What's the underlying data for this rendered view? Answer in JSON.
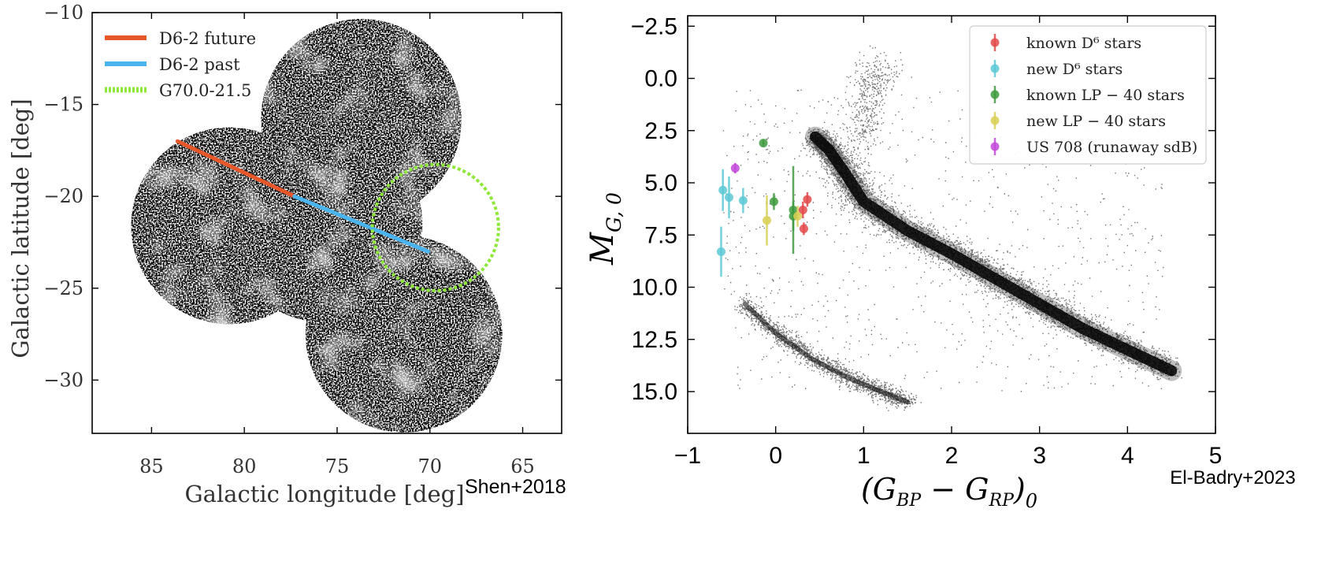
{
  "colors": {
    "future": "#e8572a",
    "past": "#49b4ee",
    "circle": "#8ee83a",
    "known_d6": "#e34a4a",
    "new_d6": "#5cc9d6",
    "known_lp": "#3e9a3e",
    "new_lp": "#d9cf55",
    "us708": "#c248d8"
  },
  "chart_data": [
    {
      "type": "scatter",
      "title": "",
      "xlabel": "Galactic longitude [deg]",
      "ylabel": "Galactic latitude [deg]",
      "xlim": [
        88.2,
        62.9
      ],
      "ylim": [
        -32.9,
        -10
      ],
      "xticks": [
        85,
        80,
        75,
        70,
        65
      ],
      "yticks": [
        -10,
        -15,
        -20,
        -25,
        -30
      ],
      "xtick_labels": [
        "85",
        "80",
        "75",
        "70",
        "65"
      ],
      "ytick_labels": [
        "−10",
        "−15",
        "−20",
        "−25",
        "−30"
      ],
      "credit": "Shen+2018",
      "legend": [
        {
          "label": "D6-2 future",
          "style": "solid",
          "color_key": "future"
        },
        {
          "label": "D6-2 past",
          "style": "solid",
          "color_key": "past"
        },
        {
          "label": "G70.0-21.5",
          "style": "dotted",
          "color_key": "circle"
        }
      ],
      "trajectory_future": [
        [
          83.6,
          -17.0
        ],
        [
          77.3,
          -20.0
        ]
      ],
      "trajectory_past": [
        [
          77.3,
          -20.0
        ],
        [
          70.1,
          -23.0
        ]
      ],
      "remnant_circle": {
        "center": [
          69.7,
          -21.7
        ],
        "radius_deg": 3.4
      },
      "survey_fields": [
        {
          "center": [
            80.8,
            -21.6
          ],
          "radius_deg": 5.3
        },
        {
          "center": [
            73.7,
            -15.8
          ],
          "radius_deg": 5.4
        },
        {
          "center": [
            75.7,
            -21.5
          ],
          "radius_deg": 5.3
        },
        {
          "center": [
            71.4,
            -27.5
          ],
          "radius_deg": 5.3
        }
      ]
    },
    {
      "type": "scatter",
      "title": "",
      "xlabel": "(G_BP − G_RP)_0",
      "ylabel": "M_G,0",
      "xlim": [
        -1,
        5
      ],
      "ylim": [
        17,
        -3
      ],
      "xticks": [
        -1,
        0,
        1,
        2,
        3,
        4,
        5
      ],
      "yticks": [
        -2.5,
        0,
        2.5,
        5,
        7.5,
        10,
        12.5,
        15
      ],
      "xtick_labels": [
        "−1",
        "0",
        "1",
        "2",
        "3",
        "4",
        "5"
      ],
      "ytick_labels": [
        "−2.5",
        "0.0",
        "2.5",
        "5.0",
        "7.5",
        "10.0",
        "12.5",
        "15.0"
      ],
      "credit": "El-Badry+2023",
      "legend": [
        {
          "label": "known D⁶ stars",
          "color_key": "known_d6"
        },
        {
          "label": "new D⁶ stars",
          "color_key": "new_d6"
        },
        {
          "label": "known LP − 40 stars",
          "color_key": "known_lp"
        },
        {
          "label": "new LP − 40 stars",
          "color_key": "new_lp"
        },
        {
          "label": "US 708 (runaway sdB)",
          "color_key": "us708"
        }
      ],
      "series": [
        {
          "name": "known D6 stars",
          "color_key": "known_d6",
          "points": [
            {
              "x": 0.36,
              "y": 5.8,
              "err": 0.35
            },
            {
              "x": 0.31,
              "y": 6.3,
              "err": 0.4
            },
            {
              "x": 0.32,
              "y": 7.2,
              "err": 0.3
            }
          ]
        },
        {
          "name": "new D6 stars",
          "color_key": "new_d6",
          "points": [
            {
              "x": -0.6,
              "y": 5.35,
              "err": 1.0
            },
            {
              "x": -0.53,
              "y": 5.7,
              "err": 1.0
            },
            {
              "x": -0.37,
              "y": 5.85,
              "err": 0.6
            },
            {
              "x": -0.62,
              "y": 8.3,
              "err": 1.2
            }
          ]
        },
        {
          "name": "known LP-40 stars",
          "color_key": "known_lp",
          "points": [
            {
              "x": -0.14,
              "y": 3.1,
              "err": 0.15
            },
            {
              "x": -0.02,
              "y": 5.9,
              "err": 0.4
            },
            {
              "x": 0.2,
              "y": 6.3,
              "err": 2.1
            },
            {
              "x": 0.2,
              "y": 6.6,
              "err": 0.7
            }
          ]
        },
        {
          "name": "new LP-40 stars",
          "color_key": "new_lp",
          "points": [
            {
              "x": -0.1,
              "y": 6.8,
              "err": 1.2
            },
            {
              "x": 0.25,
              "y": 6.6,
              "err": 0.5
            }
          ]
        },
        {
          "name": "US 708",
          "color_key": "us708",
          "points": [
            {
              "x": -0.46,
              "y": 4.3,
              "err": 0.25
            }
          ]
        }
      ],
      "background": {
        "description_key": "gaia_field_stars",
        "main_sequence": [
          [
            0.45,
            2.8
          ],
          [
            0.6,
            3.4
          ],
          [
            0.8,
            4.6
          ],
          [
            1.0,
            5.9
          ],
          [
            1.5,
            7.3
          ],
          [
            2.0,
            8.4
          ],
          [
            2.5,
            9.6
          ],
          [
            3.0,
            10.8
          ],
          [
            3.5,
            12.0
          ],
          [
            4.0,
            13.0
          ],
          [
            4.5,
            14.0
          ]
        ],
        "white_dwarf_sequence": [
          [
            -0.35,
            10.8
          ],
          [
            0.0,
            12.2
          ],
          [
            0.4,
            13.4
          ],
          [
            0.8,
            14.3
          ],
          [
            1.2,
            15.0
          ],
          [
            1.5,
            15.5
          ]
        ],
        "giant_branch": [
          [
            0.95,
            3.5
          ],
          [
            1.0,
            1.5
          ],
          [
            1.1,
            0.0
          ],
          [
            1.2,
            -0.5
          ]
        ]
      }
    }
  ]
}
